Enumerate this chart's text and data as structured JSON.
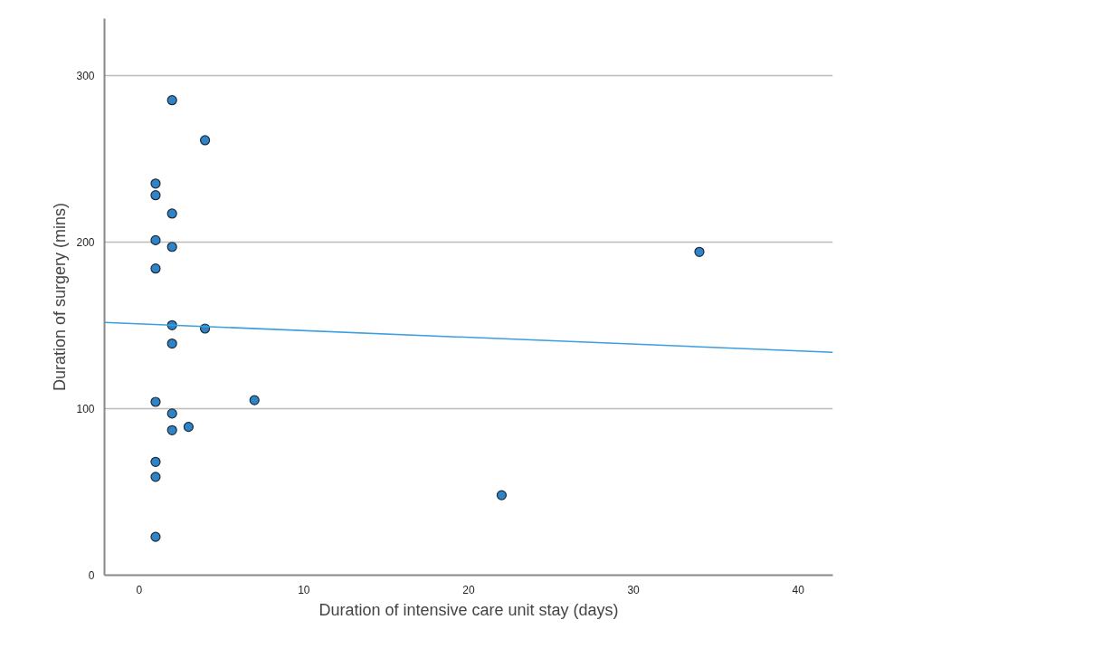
{
  "chart_data": {
    "type": "scatter",
    "xlabel": "Duration of intensive care unit stay (days)",
    "ylabel": "Duration of surgery (mins)",
    "xlim": [
      -2.1,
      42.1
    ],
    "ylim": [
      0,
      334
    ],
    "xticks": [
      0,
      10,
      20,
      30,
      40
    ],
    "yticks": [
      0,
      100,
      200,
      300
    ],
    "grid": "y",
    "series": [
      {
        "marker": "circle",
        "color": "#2f84c8",
        "x": [
          2,
          4,
          1,
          1,
          2,
          1,
          2,
          1,
          2,
          4,
          2,
          1,
          7,
          2,
          3,
          2,
          1,
          1,
          1,
          22,
          34
        ],
        "values": [
          285,
          261,
          235,
          228,
          217,
          201,
          197,
          184,
          150,
          148,
          139,
          104,
          105,
          97,
          89,
          87,
          68,
          59,
          23,
          48,
          194
        ]
      },
      {
        "type": "line",
        "color": "#3a9ee0",
        "x": [
          -2.1,
          42.1
        ],
        "values": [
          151.7,
          133.7
        ]
      }
    ]
  }
}
